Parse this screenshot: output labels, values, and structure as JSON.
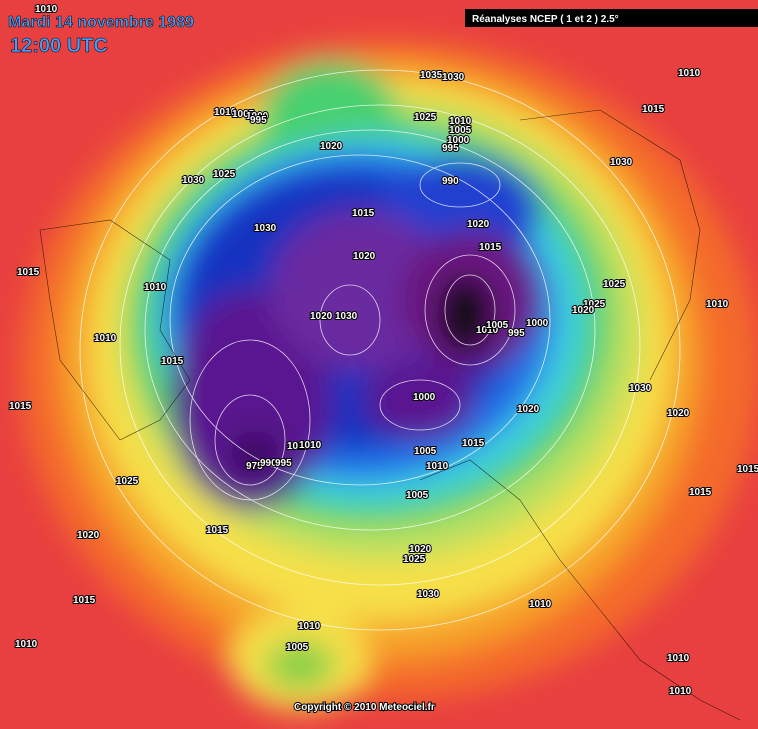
{
  "header": {
    "date": "Mardi 14 novembre 1989",
    "time": "12:00 UTC",
    "source": "Réanalyses NCEP ( 1 et 2 ) 2.5°"
  },
  "isobar_labels": [
    "1010",
    "1035",
    "1030",
    "1010",
    "1015",
    "1025",
    "1010",
    "1005",
    "1000",
    "995",
    "1010",
    "1005",
    "1000",
    "995",
    "1020",
    "1030",
    "1030",
    "1025",
    "990",
    "1015",
    "1020",
    "1030",
    "1015",
    "1020",
    "1015",
    "1025",
    "1010",
    "1025",
    "1020",
    "1010",
    "1020",
    "1030",
    "1010",
    "1005",
    "995",
    "1000",
    "1010",
    "1015",
    "1030",
    "1000",
    "1020",
    "1020",
    "1015",
    "1015",
    "1005",
    "1010",
    "1010",
    "1010",
    "975",
    "990",
    "995",
    "1015",
    "1025",
    "1005",
    "1015",
    "1015",
    "1020",
    "1020",
    "1025",
    "1030",
    "1015",
    "1010",
    "1010",
    "1005",
    "1010",
    "1010",
    "1010"
  ],
  "copyright": "Copyright © 2010 Meteociel.fr"
}
